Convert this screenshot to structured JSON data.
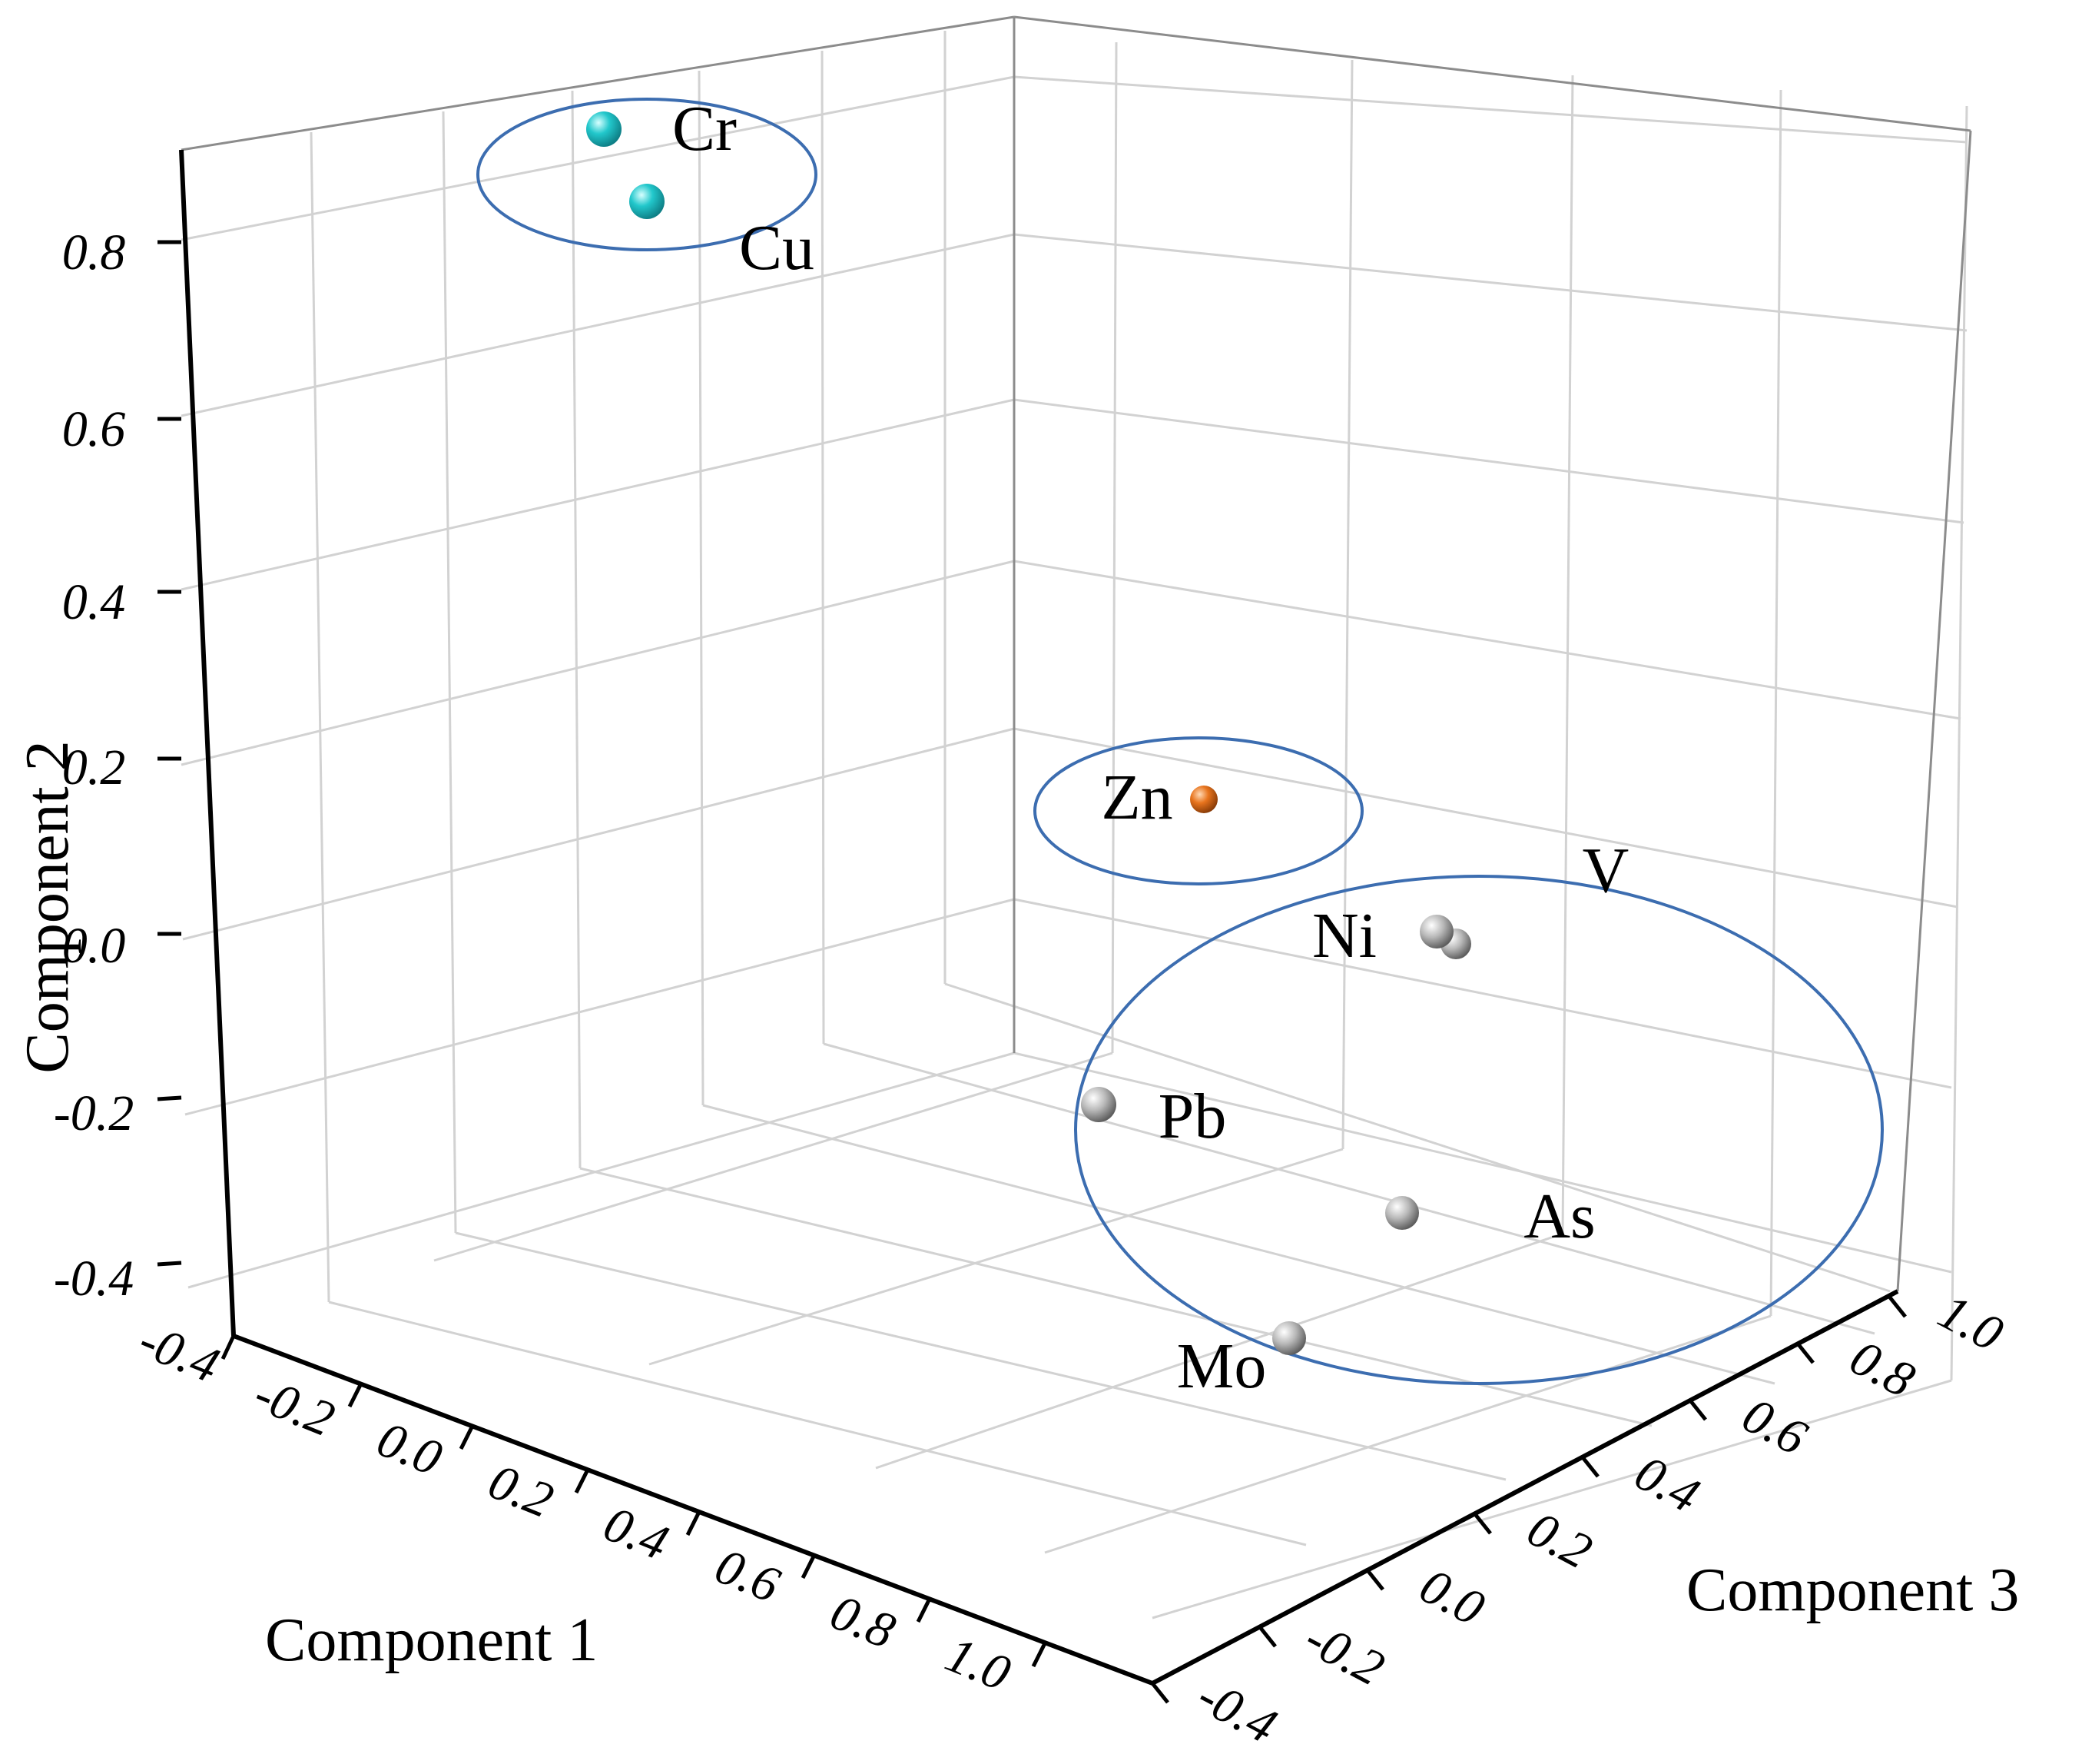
{
  "chart_data": {
    "type": "scatter3d",
    "axes": {
      "x": {
        "label": "Component 1",
        "range": [
          -0.4,
          1.0
        ],
        "ticks": [
          "-0.4",
          "-0.2",
          "0.0",
          "0.2",
          "0.4",
          "0.6",
          "0.8",
          "1.0"
        ]
      },
      "y": {
        "label": "Component 2",
        "range": [
          -0.4,
          0.8
        ],
        "ticks": [
          "-0.4",
          "-0.2",
          "0.0",
          "0.2",
          "0.4",
          "0.6",
          "0.8"
        ]
      },
      "z": {
        "label": "Component 3",
        "range": [
          -0.4,
          1.0
        ],
        "ticks": [
          "-0.4",
          "-0.2",
          "0.0",
          "0.2",
          "0.4",
          "0.6",
          "0.8",
          "1.0"
        ]
      }
    },
    "grid": true,
    "colors": {
      "cyan": "#1fc9cc",
      "orange": "#e8741d",
      "gray": "#a8a8a8",
      "cluster_outline": "#3c6db0"
    },
    "points": [
      {
        "label": "Cr",
        "color": "cyan"
      },
      {
        "label": "Cu",
        "color": "cyan"
      },
      {
        "label": "Zn",
        "color": "orange"
      },
      {
        "label": "V",
        "color": "gray"
      },
      {
        "label": "Ni",
        "color": "gray"
      },
      {
        "label": "Pb",
        "color": "gray"
      },
      {
        "label": "As",
        "color": "gray"
      },
      {
        "label": "Mo",
        "color": "gray"
      }
    ]
  }
}
